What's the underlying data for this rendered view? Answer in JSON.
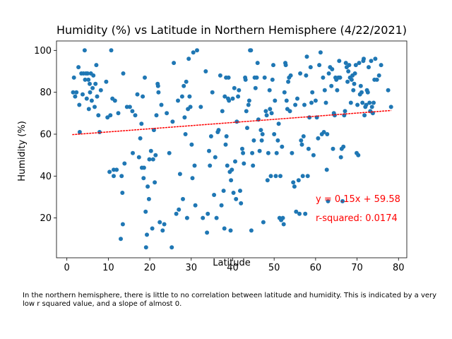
{
  "chart_data": {
    "type": "scatter",
    "title": "Humidity (%) vs Latitude in Northern Hemisphere (4/22/2021)",
    "xlabel": "Latitude",
    "ylabel": "Humidity (%)",
    "xlim": [
      -2.5,
      82
    ],
    "ylim": [
      1,
      104.5
    ],
    "xticks": [
      0,
      10,
      20,
      30,
      40,
      50,
      60,
      70,
      80
    ],
    "yticks": [
      20,
      40,
      60,
      80,
      100
    ],
    "grid": false,
    "point_color": "#1f77b4",
    "line_color": "#ff0000",
    "regression": {
      "slope": 0.15,
      "intercept": 59.58,
      "x_range": [
        1.3,
        78.2
      ]
    },
    "annotations": {
      "equation": "y = 0.15x + 59.58",
      "r_squared": "r-squared: 0.0174"
    },
    "points": [
      [
        1.5,
        80
      ],
      [
        1.7,
        87
      ],
      [
        2.0,
        78
      ],
      [
        2.3,
        80
      ],
      [
        2.8,
        92
      ],
      [
        3.0,
        74
      ],
      [
        3.1,
        61
      ],
      [
        3.5,
        89
      ],
      [
        3.8,
        79
      ],
      [
        4.0,
        89
      ],
      [
        4.3,
        100
      ],
      [
        4.4,
        86
      ],
      [
        4.6,
        89
      ],
      [
        4.8,
        77
      ],
      [
        5.0,
        89
      ],
      [
        5.2,
        86
      ],
      [
        5.3,
        72
      ],
      [
        5.5,
        84
      ],
      [
        5.6,
        80
      ],
      [
        5.8,
        89
      ],
      [
        6.0,
        76
      ],
      [
        6.2,
        82
      ],
      [
        6.4,
        88
      ],
      [
        6.7,
        73
      ],
      [
        6.9,
        84
      ],
      [
        7.1,
        93
      ],
      [
        7.3,
        78
      ],
      [
        7.6,
        69
      ],
      [
        7.9,
        61
      ],
      [
        8.2,
        81
      ],
      [
        9.5,
        85
      ],
      [
        9.8,
        68
      ],
      [
        10.3,
        42
      ],
      [
        10.5,
        69
      ],
      [
        10.7,
        100
      ],
      [
        11.0,
        77
      ],
      [
        11.3,
        43
      ],
      [
        11.3,
        40
      ],
      [
        11.6,
        76
      ],
      [
        12.0,
        43
      ],
      [
        12.4,
        70
      ],
      [
        13.0,
        10
      ],
      [
        13.2,
        40
      ],
      [
        13.4,
        32
      ],
      [
        13.5,
        17
      ],
      [
        13.6,
        89
      ],
      [
        13.9,
        46
      ],
      [
        14.5,
        73
      ],
      [
        15.2,
        73
      ],
      [
        15.8,
        71
      ],
      [
        15.9,
        51
      ],
      [
        16.5,
        69
      ],
      [
        17.0,
        79
      ],
      [
        17.4,
        49
      ],
      [
        17.7,
        58
      ],
      [
        18.0,
        65
      ],
      [
        18.1,
        44
      ],
      [
        18.3,
        78
      ],
      [
        18.5,
        39
      ],
      [
        18.6,
        44
      ],
      [
        18.8,
        87
      ],
      [
        19.0,
        23
      ],
      [
        19.1,
        6
      ],
      [
        19.3,
        12
      ],
      [
        19.5,
        35
      ],
      [
        19.8,
        29
      ],
      [
        19.9,
        48
      ],
      [
        20.3,
        52
      ],
      [
        20.6,
        15
      ],
      [
        20.8,
        48
      ],
      [
        21.0,
        62
      ],
      [
        21.2,
        37
      ],
      [
        21.4,
        50
      ],
      [
        21.6,
        69
      ],
      [
        21.9,
        84
      ],
      [
        22.0,
        83
      ],
      [
        22.1,
        80
      ],
      [
        22.4,
        18
      ],
      [
        22.8,
        74
      ],
      [
        23.1,
        14
      ],
      [
        23.5,
        17
      ],
      [
        24.1,
        70
      ],
      [
        24.7,
        51
      ],
      [
        25.3,
        6
      ],
      [
        25.5,
        66
      ],
      [
        25.8,
        94
      ],
      [
        26.4,
        22
      ],
      [
        26.8,
        76
      ],
      [
        27.0,
        24
      ],
      [
        27.3,
        41
      ],
      [
        27.8,
        78
      ],
      [
        28.0,
        29
      ],
      [
        28.2,
        83
      ],
      [
        28.4,
        68
      ],
      [
        28.6,
        60
      ],
      [
        28.8,
        85
      ],
      [
        29.0,
        20
      ],
      [
        29.2,
        72
      ],
      [
        29.4,
        96
      ],
      [
        29.6,
        78
      ],
      [
        29.8,
        73
      ],
      [
        30.1,
        55
      ],
      [
        30.3,
        39
      ],
      [
        30.5,
        99
      ],
      [
        30.8,
        45
      ],
      [
        31.0,
        26
      ],
      [
        31.4,
        100
      ],
      [
        32.3,
        73
      ],
      [
        32.8,
        20
      ],
      [
        33.5,
        90
      ],
      [
        33.8,
        13
      ],
      [
        34.0,
        22
      ],
      [
        34.3,
        52
      ],
      [
        34.5,
        45
      ],
      [
        34.8,
        59
      ],
      [
        35.1,
        80
      ],
      [
        35.5,
        31
      ],
      [
        35.8,
        49
      ],
      [
        36.1,
        20
      ],
      [
        36.4,
        61
      ],
      [
        36.6,
        62
      ],
      [
        37.0,
        88
      ],
      [
        37.3,
        26
      ],
      [
        37.5,
        71
      ],
      [
        37.8,
        33
      ],
      [
        38.0,
        15
      ],
      [
        38.1,
        78
      ],
      [
        38.3,
        55
      ],
      [
        38.4,
        87
      ],
      [
        38.5,
        59
      ],
      [
        38.7,
        45
      ],
      [
        38.9,
        77
      ],
      [
        39.0,
        87
      ],
      [
        39.1,
        76
      ],
      [
        39.3,
        42
      ],
      [
        39.5,
        14
      ],
      [
        39.6,
        38
      ],
      [
        39.8,
        43
      ],
      [
        40.0,
        77
      ],
      [
        40.2,
        32
      ],
      [
        40.4,
        82
      ],
      [
        40.6,
        47
      ],
      [
        40.8,
        29
      ],
      [
        41.0,
        66
      ],
      [
        41.3,
        78
      ],
      [
        41.5,
        81
      ],
      [
        41.8,
        33
      ],
      [
        42.0,
        27
      ],
      [
        42.3,
        53
      ],
      [
        42.5,
        51
      ],
      [
        42.7,
        46
      ],
      [
        43.0,
        87
      ],
      [
        43.1,
        86
      ],
      [
        43.3,
        71
      ],
      [
        43.5,
        63
      ],
      [
        43.8,
        74
      ],
      [
        44.0,
        76
      ],
      [
        44.2,
        100
      ],
      [
        44.4,
        100
      ],
      [
        44.5,
        14
      ],
      [
        44.7,
        51
      ],
      [
        44.9,
        45
      ],
      [
        45.1,
        57
      ],
      [
        45.3,
        87
      ],
      [
        45.5,
        82
      ],
      [
        45.8,
        87
      ],
      [
        46.0,
        94
      ],
      [
        46.2,
        67
      ],
      [
        46.5,
        52
      ],
      [
        46.8,
        62
      ],
      [
        47.0,
        57
      ],
      [
        47.2,
        60
      ],
      [
        47.4,
        18
      ],
      [
        47.7,
        87
      ],
      [
        48.0,
        71
      ],
      [
        48.2,
        69
      ],
      [
        48.4,
        38
      ],
      [
        48.6,
        51
      ],
      [
        48.9,
        81
      ],
      [
        49.0,
        72
      ],
      [
        49.2,
        40
      ],
      [
        49.4,
        70
      ],
      [
        49.6,
        86
      ],
      [
        49.8,
        93
      ],
      [
        50.0,
        60
      ],
      [
        50.2,
        76
      ],
      [
        50.4,
        40
      ],
      [
        50.6,
        51
      ],
      [
        50.9,
        57
      ],
      [
        51.1,
        65
      ],
      [
        51.3,
        20
      ],
      [
        51.5,
        40
      ],
      [
        51.7,
        19
      ],
      [
        51.9,
        54
      ],
      [
        52.1,
        20
      ],
      [
        52.3,
        17
      ],
      [
        52.5,
        80
      ],
      [
        52.7,
        94
      ],
      [
        52.8,
        93
      ],
      [
        53.0,
        76
      ],
      [
        53.2,
        72
      ],
      [
        53.4,
        85
      ],
      [
        53.6,
        87
      ],
      [
        53.8,
        71
      ],
      [
        54.0,
        88
      ],
      [
        54.3,
        51
      ],
      [
        54.6,
        37
      ],
      [
        54.9,
        35
      ],
      [
        55.1,
        74
      ],
      [
        55.3,
        23
      ],
      [
        55.6,
        77
      ],
      [
        55.9,
        38
      ],
      [
        56.1,
        22
      ],
      [
        56.3,
        89
      ],
      [
        56.5,
        57
      ],
      [
        56.7,
        55
      ],
      [
        56.9,
        40
      ],
      [
        57.1,
        59
      ],
      [
        57.3,
        74
      ],
      [
        57.5,
        22
      ],
      [
        57.7,
        88
      ],
      [
        57.9,
        97
      ],
      [
        58.1,
        40
      ],
      [
        58.3,
        53
      ],
      [
        58.5,
        68
      ],
      [
        58.8,
        92
      ],
      [
        59.0,
        75
      ],
      [
        59.2,
        80
      ],
      [
        59.5,
        50
      ],
      [
        60.0,
        76
      ],
      [
        60.3,
        68
      ],
      [
        60.6,
        58
      ],
      [
        60.9,
        93
      ],
      [
        61.2,
        99
      ],
      [
        61.5,
        60
      ],
      [
        61.8,
        87
      ],
      [
        62.0,
        61
      ],
      [
        62.2,
        81
      ],
      [
        62.5,
        75
      ],
      [
        62.7,
        43
      ],
      [
        62.8,
        60
      ],
      [
        63.0,
        28
      ],
      [
        63.2,
        89
      ],
      [
        63.5,
        92
      ],
      [
        63.8,
        83
      ],
      [
        64.0,
        91
      ],
      [
        64.2,
        53
      ],
      [
        64.4,
        70
      ],
      [
        64.6,
        69
      ],
      [
        64.8,
        87
      ],
      [
        65.0,
        86
      ],
      [
        65.2,
        81
      ],
      [
        65.5,
        87
      ],
      [
        65.7,
        95
      ],
      [
        65.9,
        87
      ],
      [
        66.1,
        49
      ],
      [
        66.3,
        53
      ],
      [
        66.5,
        28
      ],
      [
        66.7,
        54
      ],
      [
        66.9,
        69
      ],
      [
        67.1,
        71
      ],
      [
        67.3,
        94
      ],
      [
        67.5,
        92
      ],
      [
        67.7,
        85
      ],
      [
        67.9,
        90
      ],
      [
        68.1,
        93
      ],
      [
        68.3,
        87
      ],
      [
        68.5,
        75
      ],
      [
        68.7,
        86
      ],
      [
        68.9,
        88
      ],
      [
        69.1,
        81
      ],
      [
        69.3,
        84
      ],
      [
        69.5,
        89
      ],
      [
        69.7,
        93
      ],
      [
        69.9,
        51
      ],
      [
        70.1,
        74
      ],
      [
        70.3,
        50
      ],
      [
        70.5,
        94
      ],
      [
        70.7,
        79
      ],
      [
        70.9,
        83
      ],
      [
        71.1,
        80
      ],
      [
        71.3,
        75
      ],
      [
        71.5,
        95
      ],
      [
        71.6,
        96
      ],
      [
        71.8,
        69
      ],
      [
        72.0,
        73
      ],
      [
        72.2,
        74
      ],
      [
        72.4,
        81
      ],
      [
        72.6,
        80
      ],
      [
        72.8,
        92
      ],
      [
        73.0,
        75
      ],
      [
        73.2,
        71
      ],
      [
        73.4,
        95
      ],
      [
        73.6,
        73
      ],
      [
        73.8,
        70
      ],
      [
        74.0,
        75
      ],
      [
        74.2,
        86
      ],
      [
        74.4,
        96
      ],
      [
        74.8,
        86
      ],
      [
        75.3,
        88
      ],
      [
        75.8,
        93
      ],
      [
        77.5,
        81
      ],
      [
        78.2,
        73
      ]
    ]
  },
  "caption": "In the northern hemisphere, there is little to no correlation between latitude and humidity. This is indicated by a very low r squared value, and a slope of almost 0."
}
